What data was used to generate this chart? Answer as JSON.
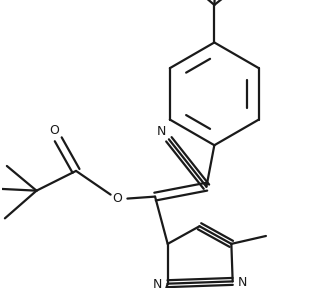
{
  "background_color": "#ffffff",
  "line_color": "#1a1a1a",
  "line_width": 1.6,
  "figsize": [
    3.2,
    2.92
  ],
  "dpi": 100,
  "xlim": [
    0,
    320
  ],
  "ylim": [
    0,
    292
  ]
}
